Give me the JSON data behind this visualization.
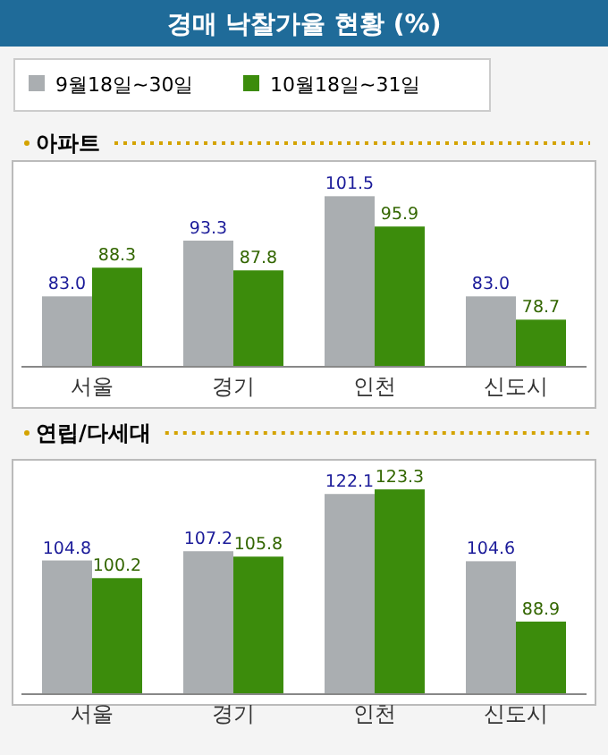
{
  "chart_data": [
    {
      "type": "bar",
      "title": "경매 낙찰가율 현황 (%)",
      "subtitle": "아파트",
      "categories": [
        "서울",
        "경기",
        "인천",
        "신도시"
      ],
      "series": [
        {
          "name": "9월18일~30일",
          "color": "#aaaeb1",
          "values": [
            83.0,
            93.3,
            101.5,
            83.0
          ],
          "value_labels": [
            "83.0",
            "93.3",
            "101.5",
            "83.0"
          ]
        },
        {
          "name": "10월18일~31일",
          "color": "#3c8c0c",
          "values": [
            88.3,
            87.8,
            95.9,
            78.7
          ],
          "value_labels": [
            "88.3",
            "87.8",
            "95.9",
            "78.7"
          ]
        }
      ],
      "ylim": [
        70,
        108
      ],
      "legend": "top"
    },
    {
      "type": "bar",
      "title": "연립/다세대",
      "categories": [
        "서울",
        "경기",
        "인천",
        "신도시"
      ],
      "series": [
        {
          "color": "#aaaeb1",
          "values": [
            104.8,
            107.2,
            122.1,
            104.6
          ],
          "value_labels": [
            "104.8",
            "107.2",
            "122.1",
            "104.6"
          ]
        },
        {
          "color": "#3c8c0c",
          "values": [
            100.2,
            105.8,
            123.3,
            88.9
          ],
          "value_labels": [
            "100.2",
            "105.8",
            "123.3",
            "88.9"
          ]
        }
      ],
      "ylim": [
        70,
        131
      ],
      "legend": false
    }
  ]
}
